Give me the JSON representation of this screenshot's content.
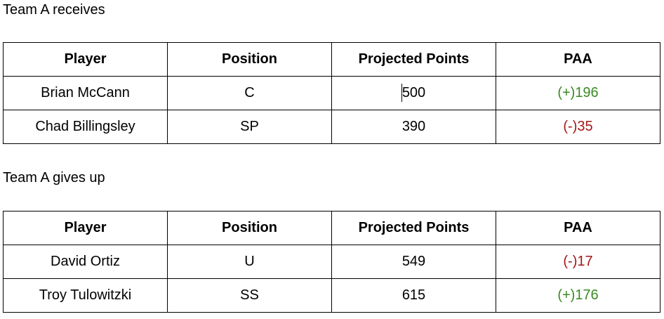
{
  "sections": [
    {
      "heading": "Team A receives",
      "columns": [
        "Player",
        "Position",
        "Projected Points",
        "PAA"
      ],
      "rows": [
        {
          "player": "Brian McCann",
          "position": "C",
          "points": "500",
          "paa": "(+)196",
          "paa_color": "#3a8a22"
        },
        {
          "player": "Chad Billingsley",
          "position": "SP",
          "points": "390",
          "paa": "(-)35",
          "paa_color": "#a51616"
        }
      ]
    },
    {
      "heading": "Team A gives up",
      "columns": [
        "Player",
        "Position",
        "Projected Points",
        "PAA"
      ],
      "rows": [
        {
          "player": "David Ortiz",
          "position": "U",
          "points": "549",
          "paa": "(-)17",
          "paa_color": "#a51616"
        },
        {
          "player": "Troy Tulowitzki",
          "position": "SS",
          "points": "615",
          "paa": "(+)176",
          "paa_color": "#3a8a22"
        }
      ]
    }
  ],
  "colors": {
    "positive": "#3a8a22",
    "negative": "#a51616",
    "border": "#000000"
  }
}
